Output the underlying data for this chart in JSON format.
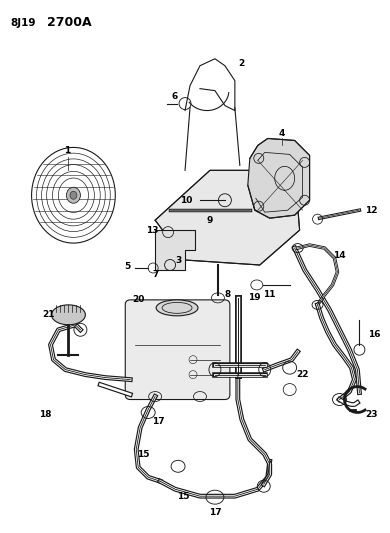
{
  "title_part1": "8J19",
  "title_part2": "2700A",
  "bg_color": "#ffffff",
  "line_color": "#1a1a1a",
  "label_color": "#000000",
  "fig_width": 3.9,
  "fig_height": 5.33,
  "dpi": 100
}
